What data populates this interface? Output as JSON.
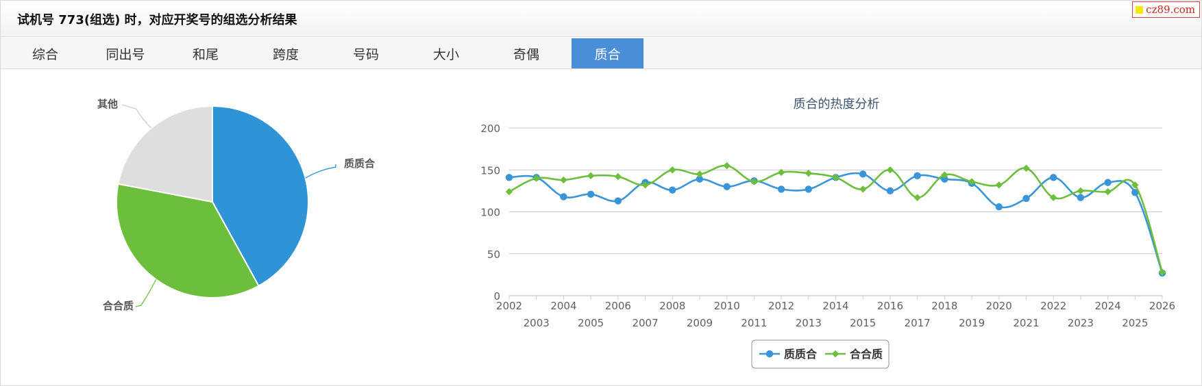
{
  "header": {
    "title": "试机号 773(组选) 时，对应开奖号的组选分析结果"
  },
  "watermark": {
    "text": "cz89.com"
  },
  "tabs": [
    {
      "label": "综合",
      "active": false
    },
    {
      "label": "同出号",
      "active": false
    },
    {
      "label": "和尾",
      "active": false
    },
    {
      "label": "跨度",
      "active": false
    },
    {
      "label": "号码",
      "active": false
    },
    {
      "label": "大小",
      "active": false
    },
    {
      "label": "奇偶",
      "active": false
    },
    {
      "label": "质合",
      "active": true
    }
  ],
  "colors": {
    "blue": "#3a94d8",
    "green": "#6cbe3c",
    "gray": "#dddddd",
    "tab_active": "#4a8ed7"
  },
  "chart_data": [
    {
      "type": "pie",
      "slices": [
        {
          "label": "质质合",
          "value": 42,
          "color": "#2f93d8"
        },
        {
          "label": "合合质",
          "value": 36,
          "color": "#6cbf3c"
        },
        {
          "label": "其他",
          "value": 22,
          "color": "#dedede"
        }
      ]
    },
    {
      "type": "line",
      "title": "质合的热度分析",
      "x": [
        "2002",
        "2003",
        "2004",
        "2005",
        "2006",
        "2007",
        "2008",
        "2009",
        "2010",
        "2011",
        "2012",
        "2013",
        "2014",
        "2015",
        "2016",
        "2017",
        "2018",
        "2019",
        "2020",
        "2021",
        "2022",
        "2023",
        "2024",
        "2025",
        "2026"
      ],
      "ylim": [
        0,
        200
      ],
      "yticks": [
        0,
        50,
        100,
        150,
        200
      ],
      "grid": true,
      "legend": "bottom-center",
      "series": [
        {
          "name": "质质合",
          "color": "#3a94d8",
          "marker": "circle",
          "values": [
            141,
            141,
            118,
            121,
            113,
            135,
            126,
            139,
            130,
            137,
            127,
            127,
            141,
            145,
            125,
            143,
            139,
            134,
            106,
            116,
            141,
            117,
            135,
            123,
            27
          ]
        },
        {
          "name": "合合质",
          "color": "#6cbe3c",
          "marker": "diamond",
          "values": [
            124,
            140,
            138,
            143,
            142,
            132,
            150,
            145,
            155,
            136,
            147,
            146,
            141,
            127,
            150,
            117,
            144,
            136,
            132,
            152,
            117,
            125,
            124,
            132,
            28
          ]
        }
      ]
    }
  ]
}
